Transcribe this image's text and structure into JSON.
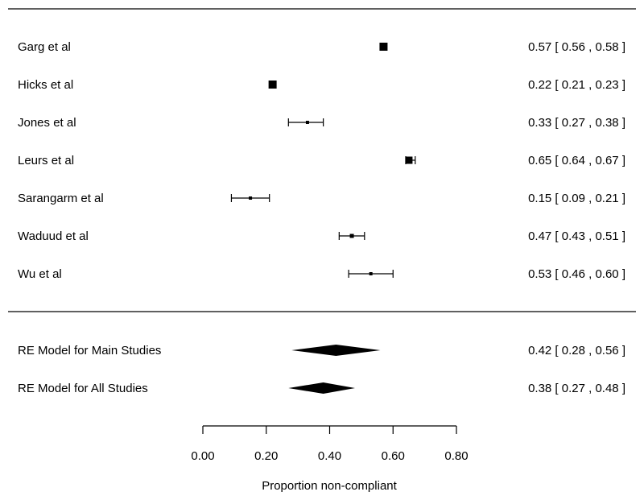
{
  "chart_data": {
    "type": "forest",
    "xlabel": "Proportion non-compliant",
    "xlim": [
      0.0,
      0.8
    ],
    "xticks": [
      "0.00",
      "0.20",
      "0.40",
      "0.60",
      "0.80"
    ],
    "studies": [
      {
        "label": "Garg et al",
        "estimate": 0.57,
        "ci": [
          0.56,
          0.58
        ],
        "text": "0.57 [ 0.56 , 0.58 ]"
      },
      {
        "label": "Hicks et al",
        "estimate": 0.22,
        "ci": [
          0.21,
          0.23
        ],
        "text": "0.22 [ 0.21 , 0.23 ]"
      },
      {
        "label": "Jones et al",
        "estimate": 0.33,
        "ci": [
          0.27,
          0.38
        ],
        "text": "0.33 [ 0.27 , 0.38 ]"
      },
      {
        "label": "Leurs et al",
        "estimate": 0.65,
        "ci": [
          0.64,
          0.67
        ],
        "text": "0.65 [ 0.64 , 0.67 ]"
      },
      {
        "label": "Sarangarm et al",
        "estimate": 0.15,
        "ci": [
          0.09,
          0.21
        ],
        "text": "0.15 [ 0.09 , 0.21 ]"
      },
      {
        "label": "Waduud et al",
        "estimate": 0.47,
        "ci": [
          0.43,
          0.51
        ],
        "text": "0.47 [ 0.43 , 0.51 ]"
      },
      {
        "label": "Wu et al",
        "estimate": 0.53,
        "ci": [
          0.46,
          0.6
        ],
        "text": "0.53 [ 0.46 , 0.60 ]"
      }
    ],
    "summaries": [
      {
        "label": "RE Model for Main Studies",
        "estimate": 0.42,
        "ci": [
          0.28,
          0.56
        ],
        "text": "0.42 [ 0.28 , 0.56 ]"
      },
      {
        "label": "RE Model for All Studies",
        "estimate": 0.38,
        "ci": [
          0.27,
          0.48
        ],
        "text": "0.38 [ 0.27 , 0.48 ]"
      }
    ]
  }
}
